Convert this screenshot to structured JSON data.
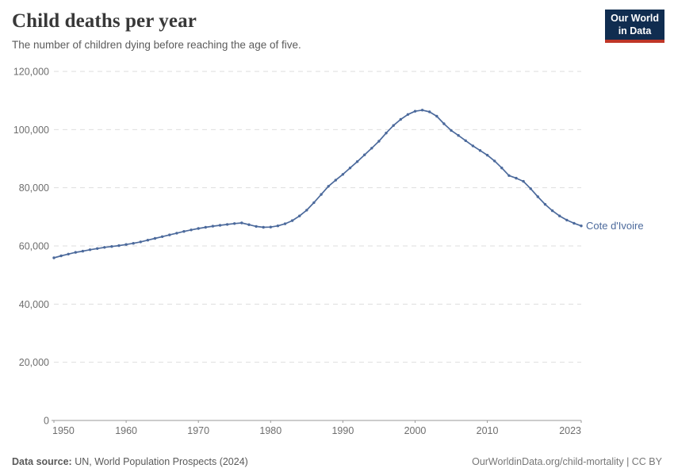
{
  "header": {
    "title": "Child deaths per year",
    "subtitle": "The number of children dying before reaching the age of five.",
    "logo": {
      "line1": "Our World",
      "line2": "in Data",
      "bg_color": "#102d50",
      "accent_color": "#bf3627"
    }
  },
  "chart_data": {
    "type": "line",
    "title": "Child deaths per year",
    "xlabel": "",
    "ylabel": "",
    "grid": "horizontal-dashed",
    "legend_position": "end-of-line-label",
    "xlim": [
      1950,
      2023
    ],
    "ylim": [
      0,
      120000
    ],
    "x_ticks": [
      {
        "v": 1950,
        "label": "1950"
      },
      {
        "v": 1960,
        "label": "1960"
      },
      {
        "v": 1970,
        "label": "1970"
      },
      {
        "v": 1980,
        "label": "1980"
      },
      {
        "v": 1990,
        "label": "1990"
      },
      {
        "v": 2000,
        "label": "2000"
      },
      {
        "v": 2010,
        "label": "2010"
      },
      {
        "v": 2023,
        "label": "2023"
      }
    ],
    "y_ticks": [
      {
        "v": 0,
        "label": "0"
      },
      {
        "v": 20000,
        "label": "20,000"
      },
      {
        "v": 40000,
        "label": "40,000"
      },
      {
        "v": 60000,
        "label": "60,000"
      },
      {
        "v": 80000,
        "label": "80,000"
      },
      {
        "v": 100000,
        "label": "100,000"
      },
      {
        "v": 120000,
        "label": "120,000"
      }
    ],
    "x": [
      1950,
      1951,
      1952,
      1953,
      1954,
      1955,
      1956,
      1957,
      1958,
      1959,
      1960,
      1961,
      1962,
      1963,
      1964,
      1965,
      1966,
      1967,
      1968,
      1969,
      1970,
      1971,
      1972,
      1973,
      1974,
      1975,
      1976,
      1977,
      1978,
      1979,
      1980,
      1981,
      1982,
      1983,
      1984,
      1985,
      1986,
      1987,
      1988,
      1989,
      1990,
      1991,
      1992,
      1993,
      1994,
      1995,
      1996,
      1997,
      1998,
      1999,
      2000,
      2001,
      2002,
      2003,
      2004,
      2005,
      2006,
      2007,
      2008,
      2009,
      2010,
      2011,
      2012,
      2013,
      2014,
      2015,
      2016,
      2017,
      2018,
      2019,
      2020,
      2021,
      2022,
      2023
    ],
    "series": [
      {
        "name": "Cote d'Ivoire",
        "color": "#4c6a9c",
        "values": [
          55900,
          56600,
          57200,
          57800,
          58200,
          58700,
          59100,
          59500,
          59800,
          60100,
          60500,
          60900,
          61400,
          62000,
          62600,
          63200,
          63800,
          64400,
          65000,
          65500,
          66000,
          66400,
          66800,
          67100,
          67400,
          67700,
          67900,
          67300,
          66700,
          66400,
          66500,
          66900,
          67600,
          68700,
          70300,
          72300,
          74900,
          77700,
          80500,
          82600,
          84600,
          86800,
          89000,
          91300,
          93600,
          96000,
          98800,
          101400,
          103500,
          105200,
          106300,
          106700,
          106100,
          104600,
          102000,
          99700,
          98000,
          96200,
          94400,
          92800,
          91200,
          89200,
          86800,
          84200,
          83300,
          82200,
          79700,
          76900,
          74300,
          72100,
          70300,
          68900,
          67800,
          66900
        ]
      }
    ],
    "colors": {
      "line": "#4c6a9c",
      "gridline": "#dedede",
      "axis": "#999999",
      "tick_text": "#6e6e6e"
    }
  },
  "footer": {
    "source_label": "Data source:",
    "source_text": " UN, World Population Prospects (2024)",
    "credit": "OurWorldinData.org/child-mortality | CC BY"
  }
}
